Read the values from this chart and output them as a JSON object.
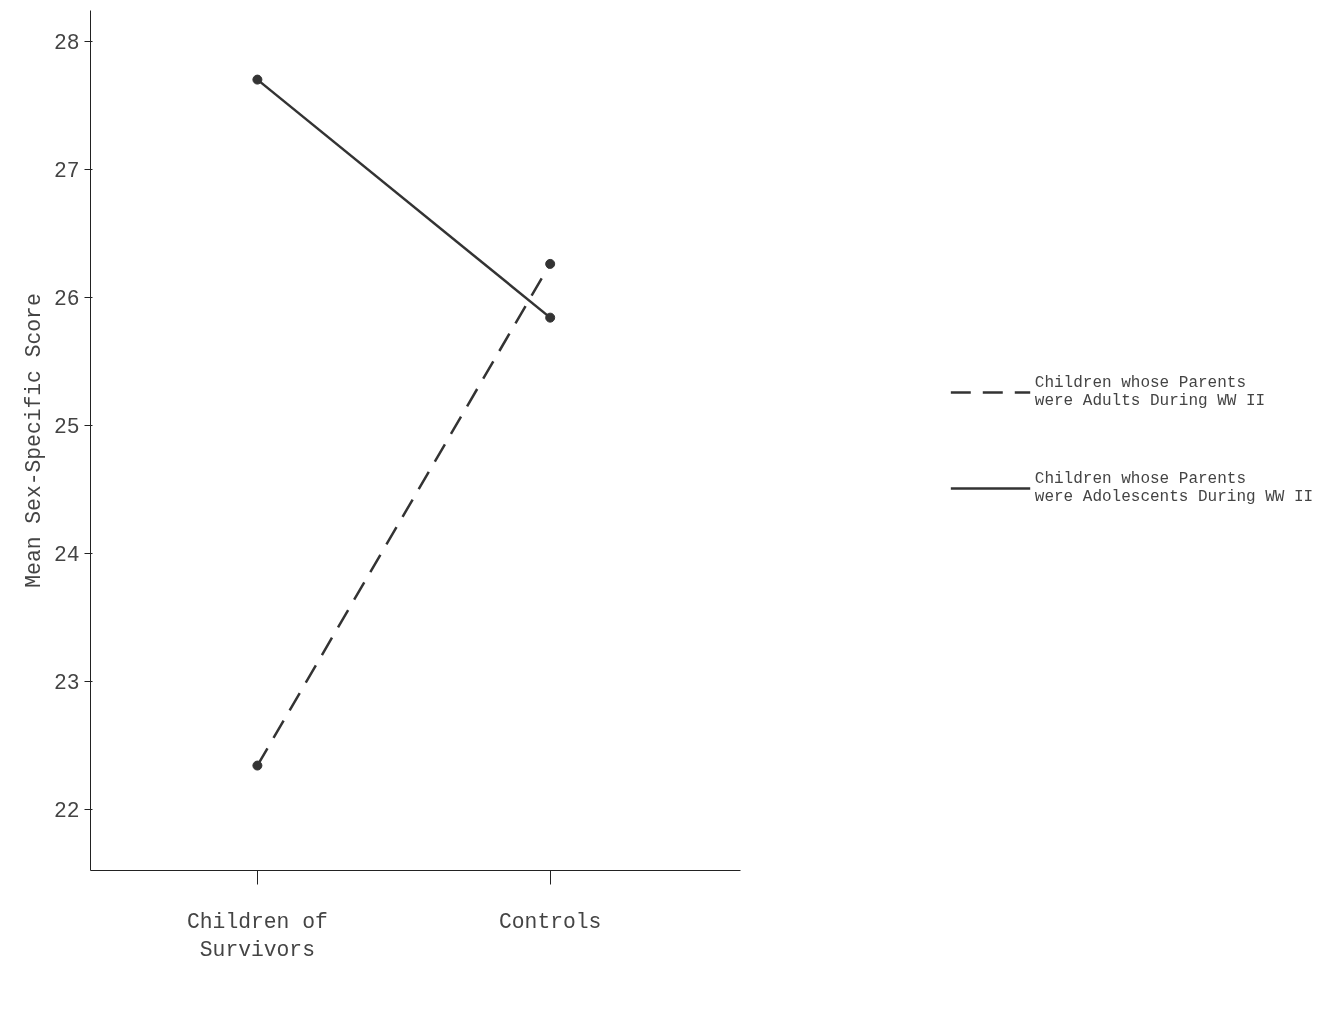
{
  "chart_data": {
    "type": "line",
    "ylabel": "Mean Sex-Specific Score",
    "categories": [
      "Children of\nSurvivors",
      "Controls"
    ],
    "series": [
      {
        "name": "Children whose Parents\nwere Adults During WW II",
        "color": "#333333",
        "values": [
          22.34,
          26.26
        ],
        "line_style": "dashed"
      },
      {
        "name": "Children whose Parents\nwere Adolescents During WW II",
        "color": "#333333",
        "values": [
          27.7,
          25.84
        ],
        "line_style": "solid"
      }
    ],
    "ylim": [
      21.52,
      28.24
    ],
    "yticks": [
      22,
      23,
      24,
      25,
      26,
      27,
      28
    ],
    "marker": "circle",
    "grid": false,
    "legend": "right"
  }
}
